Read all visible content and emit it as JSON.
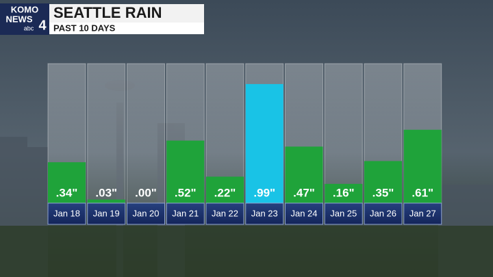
{
  "logo": {
    "line1": "KOMO",
    "line2": "NEWS",
    "network": "abc",
    "channel": "4"
  },
  "chart_data": {
    "type": "bar",
    "title": "SEATTLE RAIN",
    "subtitle": "PAST 10 DAYS",
    "categories": [
      "Jan 18",
      "Jan 19",
      "Jan 20",
      "Jan 21",
      "Jan 22",
      "Jan 23",
      "Jan 24",
      "Jan 25",
      "Jan 26",
      "Jan 27"
    ],
    "values": [
      0.34,
      0.03,
      0.0,
      0.52,
      0.22,
      0.99,
      0.47,
      0.16,
      0.35,
      0.61
    ],
    "value_labels": [
      ".34\"",
      ".03\"",
      ".00\"",
      ".52\"",
      ".22\"",
      ".99\"",
      ".47\"",
      ".16\"",
      ".35\"",
      ".61\""
    ],
    "colors": [
      "#1fa33a",
      "#1fa33a",
      "#1fa33a",
      "#1fa33a",
      "#1fa33a",
      "#19c3e6",
      "#1fa33a",
      "#1fa33a",
      "#1fa33a",
      "#1fa33a"
    ],
    "ylim": [
      0,
      1.16
    ]
  }
}
